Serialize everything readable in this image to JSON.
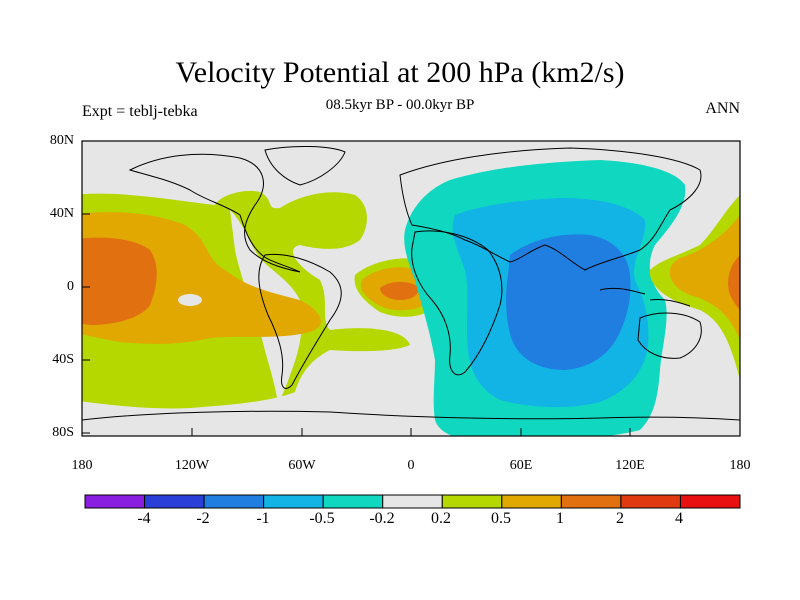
{
  "title": "Velocity Potential at 200 hPa (km2/s)",
  "subtitle": "08.5kyr BP - 00.0kyr BP",
  "left_label": "Expt = teblj-tebka",
  "right_label": "ANN",
  "map": {
    "lat_labels": [
      "80N",
      "40N",
      "0",
      "40S",
      "80S"
    ],
    "lon_labels": [
      "180",
      "120W",
      "60W",
      "0",
      "60E",
      "120E",
      "180"
    ]
  },
  "colorbar": {
    "levels": [
      "-4",
      "-2",
      "-1",
      "-0.5",
      "-0.2",
      "0.2",
      "0.5",
      "1",
      "2",
      "4"
    ],
    "colors": [
      "#8a1ee0",
      "#2a3fd8",
      "#1f7ee0",
      "#12b4e6",
      "#10d8c0",
      "#e6e6e6",
      "#b4d800",
      "#e0a800",
      "#e07010",
      "#e03a10",
      "#e81010"
    ]
  },
  "colors": {
    "land_outline": "#000000",
    "background": "#e6e6e6"
  }
}
